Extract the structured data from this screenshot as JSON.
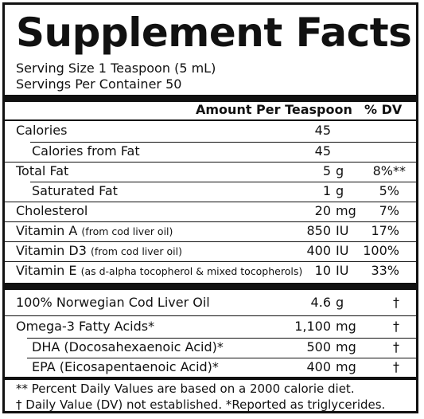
{
  "panel": {
    "title": "Supplement Facts",
    "serving_size": "Serving Size 1 Teaspoon (5 mL)",
    "servings_per_container": "Servings Per Container 50"
  },
  "header": {
    "amount": "Amount Per Teaspoon",
    "dv": "% DV"
  },
  "rows": [
    {
      "name": "Calories",
      "note": "",
      "amount": "45",
      "unit": "",
      "dv": ""
    },
    {
      "name": "Calories from Fat",
      "note": "",
      "amount": "45",
      "unit": "",
      "dv": ""
    },
    {
      "name": "Total Fat",
      "note": "",
      "amount": "5",
      "unit": "g",
      "dv": "8%**"
    },
    {
      "name": "Saturated Fat",
      "note": "",
      "amount": "1",
      "unit": "g",
      "dv": "5%"
    },
    {
      "name": "Cholesterol",
      "note": "",
      "amount": "20",
      "unit": "mg",
      "dv": "7%"
    },
    {
      "name": "Vitamin A",
      "note": "(from cod liver oil)",
      "amount": "850",
      "unit": "IU",
      "dv": "17%"
    },
    {
      "name": "Vitamin D3",
      "note": "(from cod liver oil)",
      "amount": "400",
      "unit": "IU",
      "dv": "100%"
    },
    {
      "name": "Vitamin E",
      "note": "(as d-alpha tocopherol & mixed tocopherols)",
      "amount": "10",
      "unit": "IU",
      "dv": "33%"
    }
  ],
  "other_rows": [
    {
      "name": "100% Norwegian Cod Liver Oil",
      "amount": "4.6",
      "unit": "g",
      "dv": "†"
    },
    {
      "name": "Omega-3 Fatty Acids*",
      "amount": "1,100",
      "unit": "mg",
      "dv": "†"
    },
    {
      "name": "DHA (Docosahexaenoic Acid)*",
      "amount": "500",
      "unit": "mg",
      "dv": "†"
    },
    {
      "name": "EPA (Eicosapentaenoic Acid)*",
      "amount": "400",
      "unit": "mg",
      "dv": "†"
    }
  ],
  "footnotes": {
    "line1": "** Percent Daily Values are based on a 2000 calorie diet.",
    "line2": "† Daily Value (DV) not established. *Reported as triglycerides."
  }
}
